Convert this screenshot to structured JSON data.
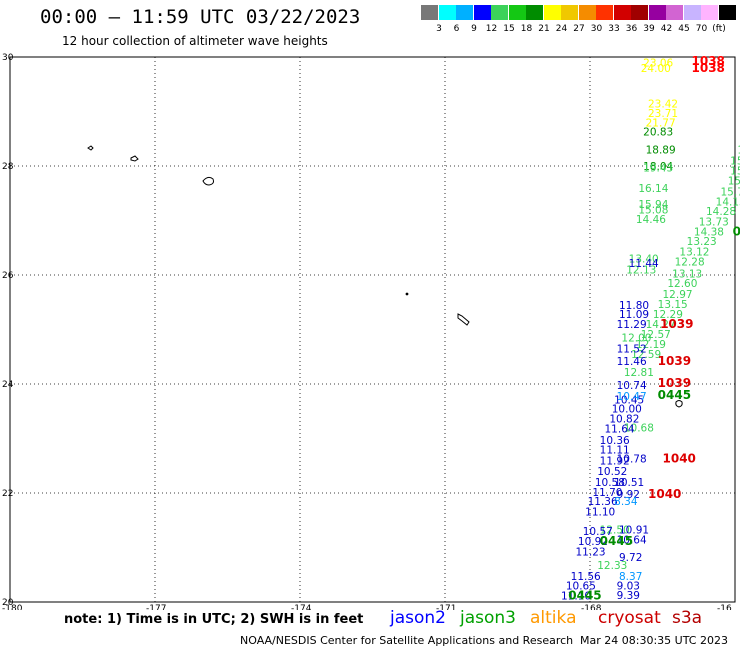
{
  "header": {
    "title": "00:00 – 11:59 UTC 03/22/2023",
    "subtitle": "12 hour collection of altimeter wave heights"
  },
  "color_scale": {
    "colors": [
      "#787878",
      "#00ffff",
      "#00b0ff",
      "#0000ff",
      "#3cd25a",
      "#14c814",
      "#008c00",
      "#ffff00",
      "#f0c800",
      "#f58c00",
      "#ff3200",
      "#d20000",
      "#a00000",
      "#9600a0",
      "#d264d2",
      "#c8b4ff",
      "#ffb4ff",
      "#000000"
    ],
    "labels": [
      "3",
      "6",
      "9",
      "12",
      "15",
      "18",
      "21",
      "24",
      "27",
      "30",
      "33",
      "36",
      "39",
      "42",
      "45",
      "70",
      "(ft)"
    ]
  },
  "axes": {
    "lat_labels": [
      "30",
      "28",
      "26",
      "24",
      "22",
      "20"
    ],
    "lon_labels": [
      "-180",
      "-177",
      "-174",
      "-171",
      "-168",
      "-16"
    ]
  },
  "map": {
    "lon_range": [
      -180,
      -165
    ],
    "lat_range": [
      20,
      30
    ],
    "passes": [
      {
        "id": "s3a-1038",
        "color": "#ff0000",
        "points": [
          {
            "t": "1038",
            "lon": -165.9,
            "lat": 29.93,
            "w": true
          },
          {
            "t": "1038",
            "lon": -165.9,
            "lat": 29.8,
            "w": true
          }
        ]
      },
      {
        "id": "altika",
        "color": "#ffff00",
        "points": [
          {
            "t": "23.06",
            "lon": -166.9,
            "lat": 29.9
          },
          {
            "t": "24.00",
            "lon": -166.95,
            "lat": 29.8
          },
          {
            "t": "23.42",
            "lon": -166.8,
            "lat": 29.15
          },
          {
            "t": "23.71",
            "lon": -166.8,
            "lat": 28.97
          },
          {
            "t": "21.77",
            "lon": -166.85,
            "lat": 28.8
          }
        ]
      },
      {
        "id": "jason3-A",
        "color": "#008c00",
        "points": [
          {
            "t": "20.83",
            "lon": -166.9,
            "lat": 28.63
          },
          {
            "t": "18.89",
            "lon": -166.85,
            "lat": 28.3
          },
          {
            "t": "18.04",
            "lon": -166.9,
            "lat": 28.0
          }
        ]
      },
      {
        "id": "jason3-B",
        "color": "#3cd25a",
        "points": [
          {
            "t": "19.43",
            "lon": -166.9,
            "lat": 27.97
          },
          {
            "t": "16.14",
            "lon": -167.0,
            "lat": 27.6
          },
          {
            "t": "15.94",
            "lon": -167.0,
            "lat": 27.3
          },
          {
            "t": "15.08",
            "lon": -167.0,
            "lat": 27.2
          },
          {
            "t": "14.46",
            "lon": -167.05,
            "lat": 27.03
          }
        ]
      },
      {
        "id": "jason3-C",
        "color": "#3cd25a",
        "points": [
          {
            "t": "16",
            "lon": -164.9,
            "lat": 28.5
          },
          {
            "t": "15",
            "lon": -164.95,
            "lat": 28.3
          },
          {
            "t": "15.",
            "lon": -165.1,
            "lat": 28.1
          },
          {
            "t": "15.4",
            "lon": -165.1,
            "lat": 27.92
          },
          {
            "t": "15.28",
            "lon": -165.15,
            "lat": 27.73
          },
          {
            "t": "15.79",
            "lon": -165.3,
            "lat": 27.53
          },
          {
            "t": "14.13",
            "lon": -165.4,
            "lat": 27.35
          },
          {
            "t": "14.28",
            "lon": -165.6,
            "lat": 27.17
          },
          {
            "t": "13.73",
            "lon": -165.75,
            "lat": 26.98
          },
          {
            "t": "14.38",
            "lon": -165.85,
            "lat": 26.8
          },
          {
            "t": "13.23",
            "lon": -166.0,
            "lat": 26.62
          },
          {
            "t": "13.12",
            "lon": -166.15,
            "lat": 26.43
          },
          {
            "t": "12.28",
            "lon": -166.25,
            "lat": 26.25
          },
          {
            "t": "13.13",
            "lon": -166.3,
            "lat": 26.03
          },
          {
            "t": "12.60",
            "lon": -166.4,
            "lat": 25.85
          },
          {
            "t": "12.97",
            "lon": -166.5,
            "lat": 25.65
          },
          {
            "t": "13.15",
            "lon": -166.6,
            "lat": 25.47
          },
          {
            "t": "12.29",
            "lon": -166.7,
            "lat": 25.28
          },
          {
            "t": "14.27",
            "lon": -166.85,
            "lat": 25.1
          },
          {
            "t": "12.57",
            "lon": -166.95,
            "lat": 24.92
          },
          {
            "t": "12.19",
            "lon": -167.05,
            "lat": 24.73
          },
          {
            "t": "12.59",
            "lon": -167.15,
            "lat": 24.55
          }
        ]
      },
      {
        "id": "jason3-D",
        "color": "#3cd25a",
        "points": [
          {
            "t": "13.40",
            "lon": -167.2,
            "lat": 26.3
          },
          {
            "t": "12.13",
            "lon": -167.25,
            "lat": 26.1
          },
          {
            "t": "12.81",
            "lon": -167.3,
            "lat": 24.22
          },
          {
            "t": "12.00",
            "lon": -167.35,
            "lat": 24.85
          },
          {
            "t": "10.68",
            "lon": -167.3,
            "lat": 23.2
          },
          {
            "t": "12.50",
            "lon": -167.8,
            "lat": 21.33
          },
          {
            "t": "12.33",
            "lon": -167.85,
            "lat": 20.68
          }
        ]
      },
      {
        "id": "jason2-A",
        "color": "#0000c8",
        "points": [
          {
            "t": "11.44",
            "lon": -167.2,
            "lat": 26.22
          },
          {
            "t": "11.80",
            "lon": -167.4,
            "lat": 25.45
          },
          {
            "t": "11.09",
            "lon": -167.4,
            "lat": 25.28
          },
          {
            "t": "11.29",
            "lon": -167.45,
            "lat": 25.1
          },
          {
            "t": "11.52",
            "lon": -167.45,
            "lat": 24.65
          },
          {
            "t": "11.46",
            "lon": -167.45,
            "lat": 24.42
          },
          {
            "t": "10.74",
            "lon": -167.45,
            "lat": 23.98
          },
          {
            "t": "10.45",
            "lon": -167.5,
            "lat": 23.72
          },
          {
            "t": "10.00",
            "lon": -167.55,
            "lat": 23.55
          },
          {
            "t": "10.82",
            "lon": -167.6,
            "lat": 23.37
          },
          {
            "t": "11.64",
            "lon": -167.7,
            "lat": 23.18
          },
          {
            "t": "10.36",
            "lon": -167.8,
            "lat": 22.97
          },
          {
            "t": "10.78",
            "lon": -167.45,
            "lat": 22.63
          },
          {
            "t": "11.11",
            "lon": -167.8,
            "lat": 22.8
          },
          {
            "t": "11.92",
            "lon": -167.8,
            "lat": 22.6
          },
          {
            "t": "10.52",
            "lon": -167.85,
            "lat": 22.4
          },
          {
            "t": "10.58",
            "lon": -167.9,
            "lat": 22.2
          },
          {
            "t": "10.51",
            "lon": -167.5,
            "lat": 22.2
          },
          {
            "t": "11.70",
            "lon": -167.95,
            "lat": 22.02
          },
          {
            "t": "11.36",
            "lon": -168.05,
            "lat": 21.85
          },
          {
            "t": "11.10",
            "lon": -168.1,
            "lat": 21.66
          },
          {
            "t": "10.57",
            "lon": -168.15,
            "lat": 21.3
          },
          {
            "t": "10.92",
            "lon": -168.25,
            "lat": 21.12
          },
          {
            "t": "11.23",
            "lon": -168.3,
            "lat": 20.93
          },
          {
            "t": "11.56",
            "lon": -168.4,
            "lat": 20.48
          },
          {
            "t": "10.65",
            "lon": -168.5,
            "lat": 20.3
          },
          {
            "t": "11.10",
            "lon": -168.6,
            "lat": 20.12
          },
          {
            "t": "10.91",
            "lon": -167.4,
            "lat": 21.33
          },
          {
            "t": "10.64",
            "lon": -167.45,
            "lat": 21.15
          },
          {
            "t": "9.72",
            "lon": -167.4,
            "lat": 20.83
          },
          {
            "t": "9.03",
            "lon": -167.45,
            "lat": 20.3
          },
          {
            "t": "9.39",
            "lon": -167.45,
            "lat": 20.13
          },
          {
            "t": "9.92",
            "lon": -167.45,
            "lat": 21.98
          }
        ]
      },
      {
        "id": "jason2-B",
        "color": "#0096ff",
        "points": [
          {
            "t": "10.47",
            "lon": -167.45,
            "lat": 23.78
          },
          {
            "t": "8.34",
            "lon": -167.5,
            "lat": 21.85
          },
          {
            "t": "8.37",
            "lon": -167.4,
            "lat": 20.48
          }
        ]
      },
      {
        "id": "jason3-bold",
        "color": "#008c00",
        "points": [
          {
            "t": "0445",
            "lon": -166.6,
            "lat": 23.8,
            "w": true
          },
          {
            "t": "0445",
            "lon": -167.8,
            "lat": 21.12,
            "w": true
          },
          {
            "t": "0445",
            "lon": -168.45,
            "lat": 20.12,
            "w": true
          },
          {
            "t": "04",
            "lon": -165.05,
            "lat": 26.8,
            "w": true
          }
        ]
      },
      {
        "id": "s3a-labels",
        "color": "#dd0000",
        "points": [
          {
            "t": "1039",
            "lon": -166.55,
            "lat": 25.1,
            "w": true
          },
          {
            "t": "1039",
            "lon": -166.6,
            "lat": 24.42,
            "w": true
          },
          {
            "t": "1039",
            "lon": -166.6,
            "lat": 24.02,
            "w": true
          },
          {
            "t": "1040",
            "lon": -166.5,
            "lat": 22.63,
            "w": true
          },
          {
            "t": "1040",
            "lon": -166.8,
            "lat": 21.98,
            "w": true
          }
        ]
      }
    ]
  },
  "footer": {
    "note": "note: 1) Time is in UTC; 2) SWH is in feet",
    "satellites": [
      {
        "name": "jason2",
        "color": "#0000ff"
      },
      {
        "name": "jason3",
        "color": "#00a000"
      },
      {
        "name": "altika",
        "color": "#ff9900"
      },
      {
        "name": "cryosat",
        "color": "#cc0000"
      },
      {
        "name": "s3a",
        "color": "#b30000"
      }
    ],
    "credit_left": "NOAA/NESDIS Center for Satellite Applications and Research",
    "credit_right": "Mar 24 08:30:35 UTC 2023"
  }
}
